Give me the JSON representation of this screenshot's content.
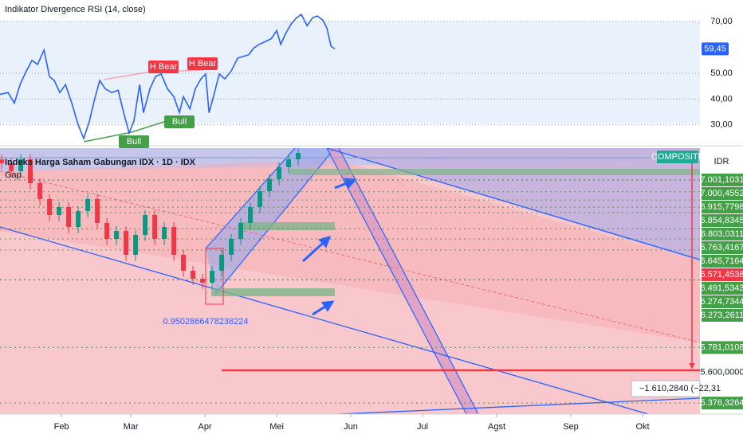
{
  "chart_data": [
    {
      "type": "line",
      "title": "Indikator Divergence RSI (14, close)",
      "x": [
        5.3,
        8.7,
        11.3,
        13.7,
        16.0,
        18.7,
        21.0,
        23.7,
        26.0,
        28.0,
        30.3,
        32.7,
        35.3,
        38.0,
        40.3,
        42.7,
        44.7,
        47.0,
        49.3,
        52.0,
        54.7,
        57.0,
        59.3,
        61.3,
        63.7,
        65.3,
        68.0,
        70.3,
        72.7,
        75.3,
        78.0,
        80.3,
        82.0,
        84.7,
        87.0,
        89.3,
        91.3,
        92.7,
        94.7,
        97.0,
        99.3,
        102.0,
        104.7,
        107.0,
        109.3,
        111.3,
        113.7,
        116.0,
        118.7,
        121.0,
        122.7,
        124.7,
        127.0,
        129.3,
        131.3,
        133.7,
        136.0,
        138.0,
        140.3,
        142.0,
        143.7,
        145.3
      ],
      "values": [
        41.8,
        42.5,
        38.4,
        45.6,
        50.3,
        55.0,
        53.4,
        59.0,
        48.7,
        47.2,
        42.5,
        45.6,
        38.4,
        30.0,
        24.7,
        31.5,
        39.3,
        47.2,
        44.0,
        42.5,
        43.4,
        34.7,
        26.8,
        31.5,
        45.6,
        34.7,
        44.0,
        48.7,
        49.7,
        44.0,
        40.9,
        34.7,
        40.9,
        36.2,
        44.0,
        47.8,
        49.7,
        34.7,
        41.5,
        49.7,
        47.8,
        50.9,
        55.9,
        56.5,
        57.2,
        59.7,
        61.2,
        62.2,
        63.4,
        66.5,
        61.2,
        65.3,
        69.0,
        71.5,
        72.8,
        68.4,
        71.5,
        72.2,
        70.6,
        67.5,
        60.5,
        59.45
      ],
      "color": "#2962ff",
      "xlim": [
        5.3,
        298
      ],
      "ylim": [
        22.2,
        78.4
      ],
      "yticks": [
        {
          "value": 70,
          "label": "70,00"
        },
        {
          "value": 50,
          "label": "50,00"
        },
        {
          "value": 40,
          "label": "40,00"
        },
        {
          "value": 30,
          "label": "30,00"
        }
      ],
      "grid": true,
      "last_value": {
        "value": 59.45,
        "label": "59,45"
      },
      "annotations": [
        "H Bear",
        "H Bear",
        "Bull",
        "Bull"
      ]
    },
    {
      "type": "candlestick",
      "title": "Indeks Harga Saham Gabungan IDX · 1D · IDX",
      "subtitle": "Gap",
      "x": [
        6,
        10,
        14,
        18,
        22,
        26,
        30,
        34,
        38,
        42,
        46,
        50,
        54,
        58,
        62,
        66,
        70,
        74,
        78,
        82,
        86,
        90,
        94,
        98,
        102,
        106,
        110,
        114,
        118,
        122,
        126,
        130
      ],
      "open": [
        7150,
        7123,
        7065,
        7152,
        6978,
        6862,
        6746,
        6804,
        6659,
        6775,
        6862,
        6688,
        6572,
        6630,
        6456,
        6601,
        6746,
        6572,
        6659,
        6456,
        6340,
        6282,
        6253,
        6340,
        6456,
        6572,
        6688,
        6804,
        6920,
        7007,
        7094,
        7152
      ],
      "high": [
        7185,
        7158,
        7187,
        7187,
        7013,
        6897,
        6839,
        6839,
        6810,
        6897,
        6897,
        6723,
        6665,
        6665,
        6636,
        6781,
        6781,
        6694,
        6694,
        6491,
        6375,
        6317,
        6375,
        6491,
        6607,
        6723,
        6839,
        6955,
        7042,
        7129,
        7187,
        7233
      ],
      "low": [
        7078,
        7020,
        7020,
        6933,
        6817,
        6701,
        6701,
        6614,
        6614,
        6730,
        6643,
        6527,
        6527,
        6411,
        6411,
        6556,
        6527,
        6527,
        6411,
        6295,
        6237,
        6208,
        6208,
        6295,
        6411,
        6527,
        6643,
        6759,
        6875,
        6962,
        7049,
        7107
      ],
      "close": [
        7123,
        7065,
        7152,
        6978,
        6862,
        6746,
        6804,
        6659,
        6775,
        6862,
        6688,
        6572,
        6630,
        6456,
        6601,
        6746,
        6572,
        6659,
        6456,
        6340,
        6282,
        6253,
        6340,
        6456,
        6572,
        6688,
        6804,
        6920,
        7007,
        7094,
        7152,
        7198
      ],
      "up_color": "#089981",
      "down_color": "#f23645",
      "xlim": [
        5.3,
        298
      ],
      "ylim": [
        5296,
        7233
      ],
      "xticks": [
        {
          "value": 31,
          "label": "Feb"
        },
        {
          "value": 60,
          "label": "Mar"
        },
        {
          "value": 91,
          "label": "Apr"
        },
        {
          "value": 121,
          "label": "Mei"
        },
        {
          "value": 152,
          "label": "Jun"
        },
        {
          "value": 182,
          "label": "Jul"
        },
        {
          "value": 213,
          "label": "Agst"
        },
        {
          "value": 244,
          "label": "Sep"
        },
        {
          "value": 274,
          "label": "Okt"
        }
      ],
      "price_lines": [
        {
          "value": 7001.1031,
          "label": "7.001,1031",
          "color": "#43a047"
        },
        {
          "value": 7000.4552,
          "label": "7.000,4552",
          "color": "#43a047"
        },
        {
          "value": 6915.7798,
          "label": "6.915,7798",
          "color": "#43a047"
        },
        {
          "value": 6854.8345,
          "label": "6.854,8345",
          "color": "#43a047"
        },
        {
          "value": 6803.0311,
          "label": "6.803,0311",
          "color": "#43a047"
        },
        {
          "value": 6763.4167,
          "label": "6.763,4167",
          "color": "#43a047"
        },
        {
          "value": 6645.7164,
          "label": "6.645,7164",
          "color": "#43a047"
        },
        {
          "value": 6571.4538,
          "label": "6.571,4538",
          "color": "#f23645"
        },
        {
          "value": 6491.5343,
          "label": "6.491,5343",
          "color": "#43a047"
        },
        {
          "value": 6274.7344,
          "label": "6.274,7344",
          "color": "#43a047"
        },
        {
          "value": 6273.2611,
          "label": "6.273,2611",
          "color": "#43a047"
        },
        {
          "value": 5781.0108,
          "label": "5.781,0108",
          "color": "#43a047"
        },
        {
          "value": 5600,
          "label": "5.600,0000",
          "color": "#ffffff"
        },
        {
          "value": 5376.3264,
          "label": "5.376,3264",
          "color": "#43a047"
        }
      ],
      "badge": "COMPOSITE",
      "currency": "IDR",
      "annotations": [
        "0.9502866478238224",
        "−1.610,2840 (−22,31"
      ]
    }
  ]
}
